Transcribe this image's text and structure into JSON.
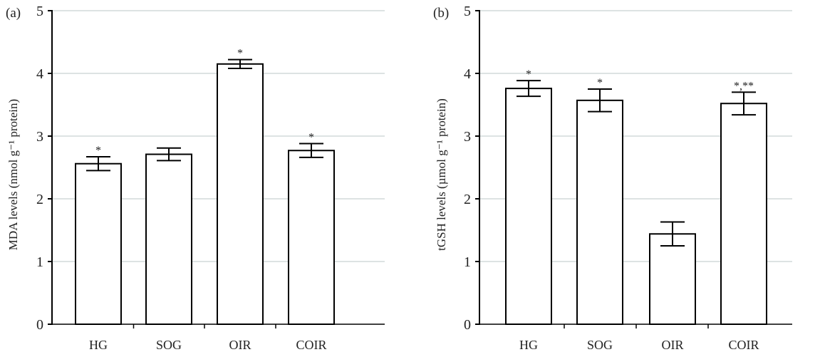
{
  "chart_data": [
    {
      "type": "bar",
      "panel_label": "(a)",
      "categories": [
        "HG",
        "SOG",
        "OIR",
        "COIR"
      ],
      "values": [
        2.56,
        2.71,
        4.15,
        2.77
      ],
      "errors": [
        0.11,
        0.1,
        0.07,
        0.11
      ],
      "annotations": [
        "*",
        "",
        "*",
        "*"
      ],
      "xlabel": "",
      "ylabel": "MDA levels (nmol g⁻¹ protein)",
      "ylim": [
        0,
        5
      ],
      "yticks": [
        "0",
        "1",
        "2",
        "3",
        "4",
        "5"
      ],
      "grid": true,
      "colors": {
        "bar_fill": "#ffffff",
        "bar_stroke": "#000000",
        "grid": "#dde3e3"
      }
    },
    {
      "type": "bar",
      "panel_label": "(b)",
      "categories": [
        "HG",
        "SOG",
        "OIR",
        "COIR"
      ],
      "values": [
        3.76,
        3.57,
        1.44,
        3.52
      ],
      "errors": [
        0.125,
        0.18,
        0.19,
        0.18
      ],
      "annotations": [
        "*",
        "*",
        "",
        "*,**"
      ],
      "xlabel": "",
      "ylabel": "tGSH levels (µmol g⁻¹ protein)",
      "ylim": [
        0,
        5
      ],
      "yticks": [
        "0",
        "1",
        "2",
        "3",
        "4",
        "5"
      ],
      "grid": true,
      "colors": {
        "bar_fill": "#ffffff",
        "bar_stroke": "#000000",
        "grid": "#dde3e3"
      }
    }
  ]
}
